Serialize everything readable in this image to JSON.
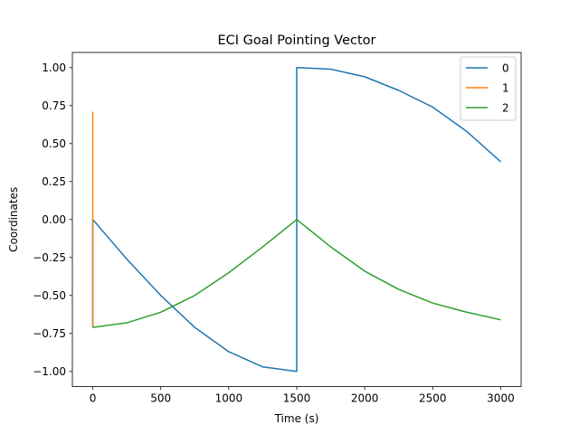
{
  "chart_data": {
    "type": "line",
    "title": "ECI Goal Pointing Vector",
    "xlabel": "Time (s)",
    "ylabel": "Coordinates",
    "xlim": [
      -150,
      3150
    ],
    "ylim": [
      -1.1,
      1.1
    ],
    "xticks": [
      0,
      500,
      1000,
      1500,
      2000,
      2500,
      3000
    ],
    "xtick_labels": [
      "0",
      "500",
      "1000",
      "1500",
      "2000",
      "2500",
      "3000"
    ],
    "yticks": [
      -1.0,
      -0.75,
      -0.5,
      -0.25,
      0.0,
      0.25,
      0.5,
      0.75,
      1.0
    ],
    "ytick_labels": [
      "−1.00",
      "−0.75",
      "−0.50",
      "−0.25",
      "0.00",
      "0.25",
      "0.50",
      "0.75",
      "1.00"
    ],
    "grid": false,
    "legend_position": "top-right",
    "series": [
      {
        "name": "0",
        "color": "#1f77b4",
        "x": [
          0,
          0,
          250,
          500,
          750,
          1000,
          1250,
          1500,
          1500,
          1500,
          1750,
          2000,
          2250,
          2500,
          2750,
          3000
        ],
        "y": [
          -0.71,
          0.0,
          -0.26,
          -0.5,
          -0.71,
          -0.87,
          -0.97,
          -1.0,
          -1.0,
          1.0,
          0.99,
          0.94,
          0.85,
          0.74,
          0.58,
          0.38
        ]
      },
      {
        "name": "1",
        "color": "#ff7f0e",
        "x": [
          0,
          0
        ],
        "y": [
          0.71,
          -0.71
        ]
      },
      {
        "name": "2",
        "color": "#2ca02c",
        "x": [
          0,
          250,
          500,
          750,
          1000,
          1250,
          1500,
          1750,
          2000,
          2250,
          2500,
          2750,
          3000
        ],
        "y": [
          -0.71,
          -0.68,
          -0.61,
          -0.5,
          -0.35,
          -0.18,
          0.0,
          -0.18,
          -0.34,
          -0.46,
          -0.55,
          -0.61,
          -0.66
        ]
      }
    ]
  }
}
